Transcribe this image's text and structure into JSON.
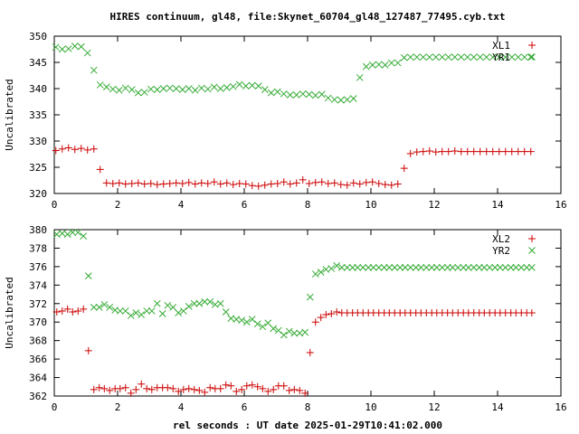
{
  "figure": {
    "title": "HIRES continuum, gl48, file:Skynet_60704_gl48_127487_77495.cyb.txt",
    "xlabel": "rel seconds : UT date 2025-01-29T10:41:02.000"
  },
  "chart_data": [
    {
      "type": "scatter",
      "ylabel": "Uncalibrated",
      "xlim": [
        0,
        16
      ],
      "ylim": [
        320,
        350
      ],
      "xticks": [
        0,
        2,
        4,
        6,
        8,
        10,
        12,
        14,
        16
      ],
      "yticks": [
        320,
        325,
        330,
        335,
        340,
        345,
        350
      ],
      "legend_position": "top-right",
      "grid": false,
      "x": [
        0.08,
        0.25,
        0.42,
        0.58,
        0.75,
        0.92,
        1.08,
        1.25,
        1.42,
        1.58,
        1.75,
        1.92,
        2.08,
        2.25,
        2.42,
        2.58,
        2.75,
        2.92,
        3.08,
        3.25,
        3.42,
        3.58,
        3.75,
        3.92,
        4.08,
        4.25,
        4.42,
        4.58,
        4.75,
        4.92,
        5.08,
        5.25,
        5.42,
        5.58,
        5.75,
        5.92,
        6.08,
        6.25,
        6.42,
        6.58,
        6.75,
        6.92,
        7.08,
        7.25,
        7.42,
        7.58,
        7.75,
        7.92,
        8.08,
        8.25,
        8.42,
        8.58,
        8.75,
        8.92,
        9.08,
        9.25,
        9.42,
        9.58,
        9.75,
        9.92,
        10.08,
        10.25,
        10.42,
        10.58,
        10.75,
        10.92,
        11.08,
        11.25,
        11.42,
        11.58,
        11.75,
        11.92,
        12.08,
        12.25,
        12.42,
        12.58,
        12.75,
        12.92,
        13.08,
        13.25,
        13.42,
        13.58,
        13.75,
        13.92,
        14.08,
        14.25,
        14.42,
        14.58,
        14.75,
        14.92,
        15.08
      ],
      "series": [
        {
          "name": "XL1",
          "marker": "plus",
          "color": "#cc0000",
          "x": [
            0.05,
            0.25,
            0.45,
            0.65,
            0.85,
            1.05,
            1.25,
            1.45,
            1.65,
            1.85,
            2.05,
            2.25,
            2.45,
            2.65,
            2.85,
            3.05,
            3.25,
            3.45,
            3.65,
            3.85,
            4.05,
            4.25,
            4.45,
            4.65,
            4.85,
            5.05,
            5.25,
            5.45,
            5.65,
            5.85,
            6.05,
            6.25,
            6.45,
            6.65,
            6.85,
            7.05,
            7.25,
            7.45,
            7.65,
            7.85,
            8.05,
            8.25,
            8.45,
            8.65,
            8.85,
            9.05,
            9.25,
            9.45,
            9.65,
            9.85,
            10.05,
            10.25,
            10.45,
            10.65,
            10.85,
            11.05,
            11.25,
            11.45,
            11.65,
            11.85,
            12.05,
            12.25,
            12.45,
            12.65,
            12.85,
            13.05,
            13.25,
            13.45,
            13.65,
            13.85,
            14.05,
            14.25,
            14.45,
            14.65,
            14.85,
            15.05
          ],
          "y": [
            328.2,
            328.5,
            328.7,
            328.4,
            328.6,
            328.3,
            328.5,
            324.6,
            322.0,
            321.9,
            322.0,
            321.8,
            321.9,
            322.0,
            321.8,
            321.9,
            321.7,
            321.8,
            321.9,
            322.0,
            321.9,
            322.1,
            321.8,
            322.0,
            321.9,
            322.2,
            321.8,
            322.0,
            321.7,
            321.9,
            321.8,
            321.5,
            321.4,
            321.6,
            321.8,
            321.9,
            322.2,
            321.8,
            322.0,
            322.6,
            321.9,
            322.1,
            322.2,
            321.9,
            322.0,
            321.7,
            321.6,
            322.0,
            321.8,
            322.1,
            322.2,
            321.9,
            321.7,
            321.6,
            321.8,
            324.8,
            327.6,
            327.9,
            328.0,
            328.1,
            327.9,
            328.0,
            328.0,
            328.1,
            328.0,
            328.0,
            328.0,
            328.0,
            328.0,
            328.0,
            328.0,
            328.0,
            328.0,
            328.0,
            328.0,
            328.0
          ]
        },
        {
          "name": "YR1",
          "marker": "cross",
          "color": "#33aa33",
          "x": [
            0.05,
            0.25,
            0.45,
            0.65,
            0.85,
            1.05,
            1.25,
            1.45,
            1.65,
            1.85,
            2.05,
            2.25,
            2.45,
            2.65,
            2.85,
            3.05,
            3.25,
            3.45,
            3.65,
            3.85,
            4.05,
            4.25,
            4.45,
            4.65,
            4.85,
            5.05,
            5.25,
            5.45,
            5.65,
            5.85,
            6.05,
            6.25,
            6.45,
            6.65,
            6.85,
            7.05,
            7.25,
            7.45,
            7.65,
            7.85,
            8.05,
            8.25,
            8.45,
            8.65,
            8.85,
            9.05,
            9.25,
            9.45,
            9.65,
            9.85,
            10.05,
            10.25,
            10.45,
            10.65,
            10.85,
            11.05,
            11.25,
            11.45,
            11.65,
            11.85,
            12.05,
            12.25,
            12.45,
            12.65,
            12.85,
            13.05,
            13.25,
            13.45,
            13.65,
            13.85,
            14.05,
            14.25,
            14.45,
            14.65,
            14.85,
            15.05
          ],
          "y": [
            347.9,
            347.5,
            347.6,
            348.1,
            348.0,
            346.8,
            343.5,
            340.7,
            340.3,
            339.9,
            339.7,
            340.1,
            339.8,
            339.2,
            339.3,
            339.9,
            339.8,
            340.0,
            340.1,
            340.0,
            339.8,
            340.0,
            339.7,
            340.1,
            339.9,
            340.3,
            340.0,
            340.2,
            340.4,
            340.8,
            340.5,
            340.6,
            340.5,
            339.8,
            339.2,
            339.4,
            339.0,
            338.8,
            338.8,
            339.0,
            338.9,
            338.7,
            338.9,
            338.2,
            337.9,
            337.8,
            337.9,
            338.1,
            342.1,
            344.2,
            344.5,
            344.6,
            344.5,
            344.9,
            344.9,
            345.9,
            346.0,
            346.0,
            346.0,
            346.0,
            346.0,
            346.0,
            346.0,
            346.0,
            346.0,
            346.0,
            346.0,
            346.0,
            346.0,
            346.0,
            346.0,
            346.0,
            346.0,
            346.0,
            346.0,
            346.0
          ]
        }
      ]
    },
    {
      "type": "scatter",
      "ylabel": "Uncalibrated",
      "xlim": [
        0,
        16
      ],
      "ylim": [
        362,
        380
      ],
      "xticks": [
        0,
        2,
        4,
        6,
        8,
        10,
        12,
        14,
        16
      ],
      "yticks": [
        362,
        364,
        366,
        368,
        370,
        372,
        374,
        376,
        378,
        380
      ],
      "legend_position": "top-right",
      "grid": false,
      "series": [
        {
          "name": "XL2",
          "marker": "plus",
          "color": "#cc0000",
          "x": [
            0.08,
            0.25,
            0.42,
            0.58,
            0.75,
            0.92,
            1.08,
            1.25,
            1.42,
            1.58,
            1.75,
            1.92,
            2.08,
            2.25,
            2.42,
            2.58,
            2.75,
            2.92,
            3.08,
            3.25,
            3.42,
            3.58,
            3.75,
            3.92,
            4.08,
            4.25,
            4.42,
            4.58,
            4.75,
            4.92,
            5.08,
            5.25,
            5.42,
            5.58,
            5.75,
            5.92,
            6.08,
            6.25,
            6.42,
            6.58,
            6.75,
            6.92,
            7.08,
            7.25,
            7.42,
            7.58,
            7.75,
            7.92,
            8.08,
            8.25,
            8.42,
            8.58,
            8.75,
            8.92,
            9.08,
            9.25,
            9.42,
            9.58,
            9.75,
            9.92,
            10.08,
            10.25,
            10.42,
            10.58,
            10.75,
            10.92,
            11.08,
            11.25,
            11.42,
            11.58,
            11.75,
            11.92,
            12.08,
            12.25,
            12.42,
            12.58,
            12.75,
            12.92,
            13.08,
            13.25,
            13.42,
            13.58,
            13.75,
            13.92,
            14.08,
            14.25,
            14.42,
            14.58,
            14.75,
            14.92,
            15.08
          ],
          "y": [
            371.1,
            371.2,
            371.4,
            371.1,
            371.2,
            371.4,
            366.9,
            362.7,
            362.9,
            362.8,
            362.6,
            362.8,
            362.8,
            362.9,
            362.3,
            362.7,
            363.3,
            362.8,
            362.7,
            362.9,
            362.9,
            362.9,
            362.8,
            362.5,
            362.7,
            362.8,
            362.7,
            362.6,
            362.4,
            362.9,
            362.8,
            362.8,
            363.2,
            363.1,
            362.5,
            362.7,
            363.1,
            363.2,
            363.0,
            362.8,
            362.5,
            362.7,
            363.1,
            363.1,
            362.6,
            362.7,
            362.6,
            362.3,
            366.7,
            370.0,
            370.5,
            370.8,
            370.9,
            371.1,
            371.0,
            371.0,
            371.0,
            371.0,
            371.0,
            371.0,
            371.0,
            371.0,
            371.0,
            371.0,
            371.0,
            371.0,
            371.0,
            371.0,
            371.0,
            371.0,
            371.0,
            371.0,
            371.0,
            371.0,
            371.0,
            371.0,
            371.0,
            371.0,
            371.0,
            371.0,
            371.0,
            371.0,
            371.0,
            371.0,
            371.0,
            371.0,
            371.0,
            371.0,
            371.0,
            371.0,
            371.0
          ]
        },
        {
          "name": "YR2",
          "marker": "cross",
          "color": "#33aa33",
          "x": [
            0.08,
            0.25,
            0.42,
            0.58,
            0.75,
            0.92,
            1.08,
            1.25,
            1.42,
            1.58,
            1.75,
            1.92,
            2.08,
            2.25,
            2.42,
            2.58,
            2.75,
            2.92,
            3.08,
            3.25,
            3.42,
            3.58,
            3.75,
            3.92,
            4.08,
            4.25,
            4.42,
            4.58,
            4.75,
            4.92,
            5.08,
            5.25,
            5.42,
            5.58,
            5.75,
            5.92,
            6.08,
            6.25,
            6.42,
            6.58,
            6.75,
            6.92,
            7.08,
            7.25,
            7.42,
            7.58,
            7.75,
            7.92,
            8.08,
            8.25,
            8.42,
            8.58,
            8.75,
            8.92,
            9.08,
            9.25,
            9.42,
            9.58,
            9.75,
            9.92,
            10.08,
            10.25,
            10.42,
            10.58,
            10.75,
            10.92,
            11.08,
            11.25,
            11.42,
            11.58,
            11.75,
            11.92,
            12.08,
            12.25,
            12.42,
            12.58,
            12.75,
            12.92,
            13.08,
            13.25,
            13.42,
            13.58,
            13.75,
            13.92,
            14.08,
            14.25,
            14.42,
            14.58,
            14.75,
            14.92,
            15.08
          ],
          "y": [
            379.5,
            379.6,
            379.5,
            379.7,
            379.7,
            379.3,
            375.0,
            371.6,
            371.6,
            371.9,
            371.6,
            371.3,
            371.2,
            371.2,
            370.7,
            371.0,
            370.8,
            371.2,
            371.2,
            372.0,
            370.9,
            371.8,
            371.6,
            371.0,
            371.2,
            371.7,
            372.0,
            372.0,
            372.2,
            372.2,
            371.9,
            372.0,
            371.1,
            370.4,
            370.3,
            370.2,
            370.0,
            370.3,
            369.8,
            369.5,
            369.9,
            369.3,
            369.1,
            368.6,
            369.0,
            368.8,
            368.8,
            368.9,
            372.7,
            375.2,
            375.4,
            375.7,
            375.8,
            376.1,
            375.9,
            375.9,
            375.9,
            375.9,
            375.9,
            375.9,
            375.9,
            375.9,
            375.9,
            375.9,
            375.9,
            375.9,
            375.9,
            375.9,
            375.9,
            375.9,
            375.9,
            375.9,
            375.9,
            375.9,
            375.9,
            375.9,
            375.9,
            375.9,
            375.9,
            375.9,
            375.9,
            375.9,
            375.9,
            375.9,
            375.9,
            375.9,
            375.9,
            375.9,
            375.9,
            375.9,
            375.9
          ]
        }
      ]
    }
  ]
}
